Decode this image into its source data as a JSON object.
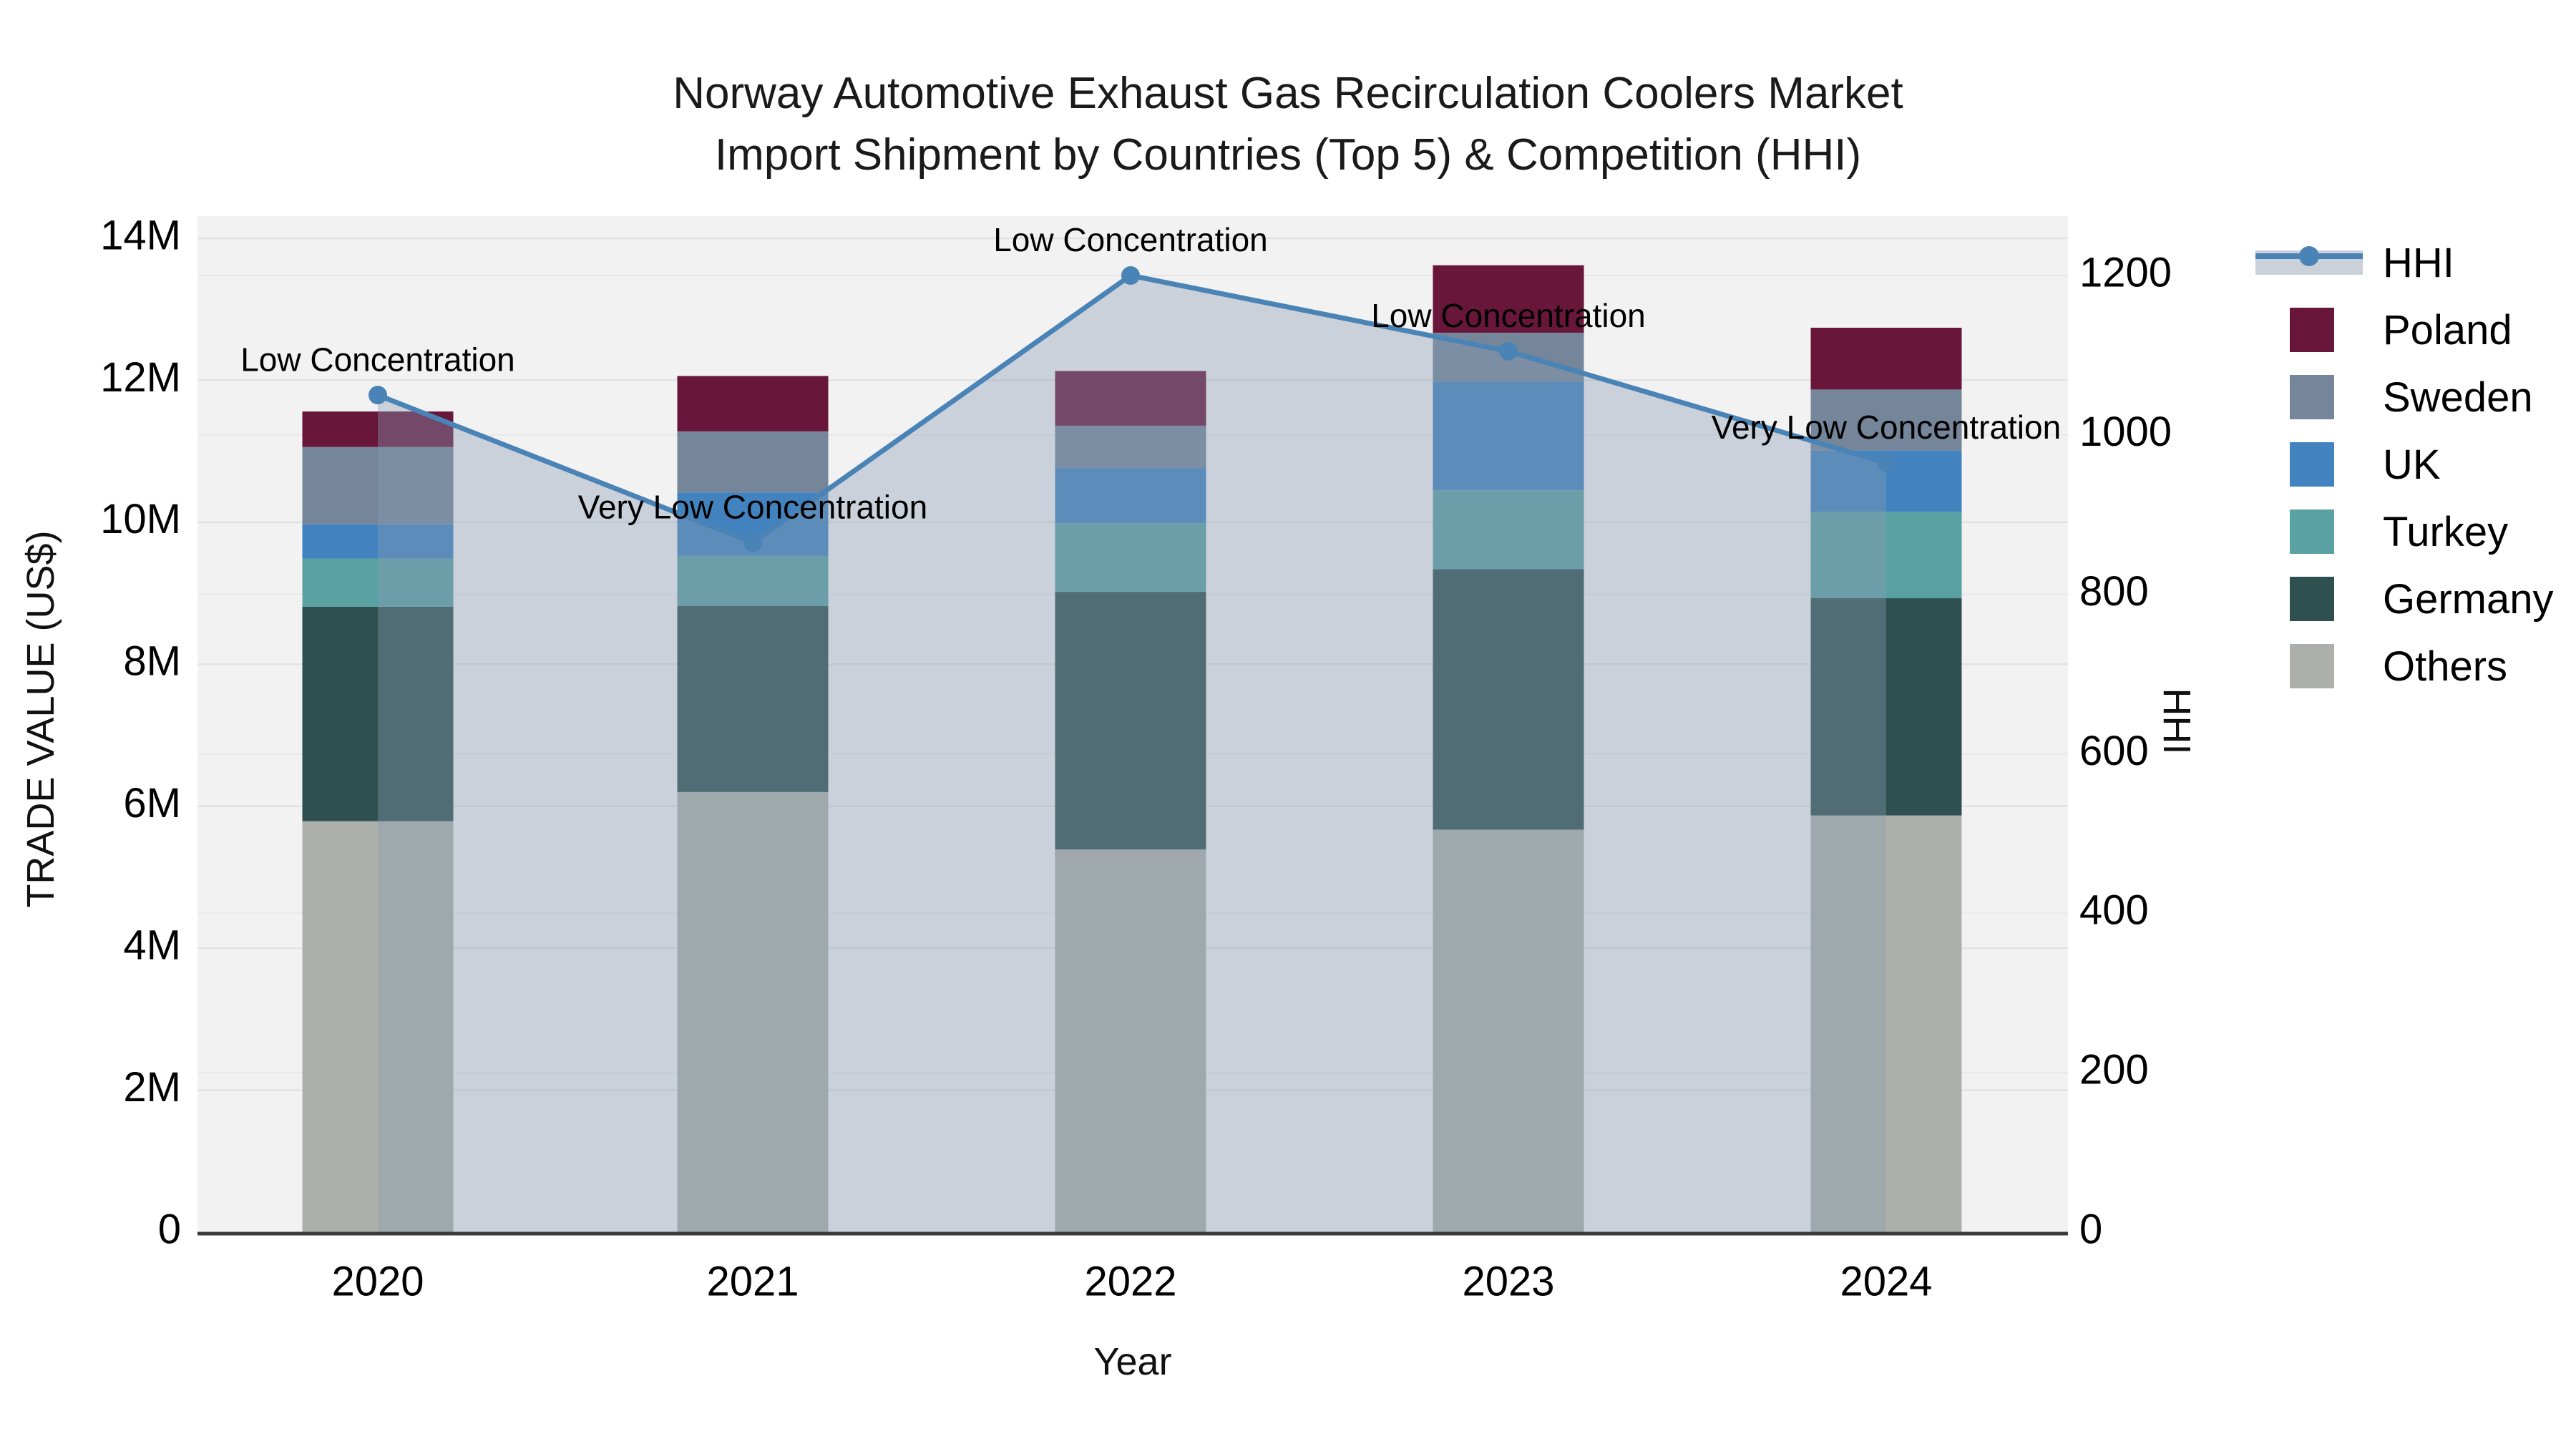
{
  "title": {
    "line1": "Norway Automotive Exhaust Gas Recirculation Coolers Market",
    "line2": "Import Shipment by Countries (Top 5) & Competition (HHI)"
  },
  "axes": {
    "x_title": "Year",
    "y_left_title": "TRADE VALUE (US$)",
    "y_right_title": "HHI",
    "y_left_ticks": [
      "0",
      "2M",
      "4M",
      "6M",
      "8M",
      "10M",
      "12M",
      "14M"
    ],
    "y_left_tick_values_musd": [
      0,
      2,
      4,
      6,
      8,
      10,
      12,
      14
    ],
    "y_right_ticks": [
      "0",
      "200",
      "400",
      "600",
      "800",
      "1000",
      "1200"
    ],
    "y_right_tick_values": [
      0,
      200,
      400,
      600,
      800,
      1000,
      1200
    ]
  },
  "chart_data": {
    "type": "bar",
    "stacked": true,
    "title": "Norway Automotive Exhaust Gas Recirculation Coolers Market Import Shipment by Countries (Top 5) & Competition (HHI)",
    "xlabel": "Year",
    "ylabel": "TRADE VALUE (US$)",
    "ylabel_right": "HHI",
    "categories": [
      "2020",
      "2021",
      "2022",
      "2023",
      "2024"
    ],
    "bar_unit": "million US$",
    "y_left_range_musd": [
      0,
      14
    ],
    "y_right_range": [
      0,
      1200
    ],
    "grid": true,
    "legend_position": "right",
    "bar_series_bottom_to_top": [
      {
        "name": "Others",
        "color": "#adb0aa",
        "values_musd": [
          5.79,
          6.2,
          5.39,
          5.67,
          5.87
        ]
      },
      {
        "name": "Germany",
        "color": "#2e5150",
        "values_musd": [
          3.02,
          2.62,
          3.63,
          3.67,
          3.06
        ]
      },
      {
        "name": "Turkey",
        "color": "#5aa1a4",
        "values_musd": [
          0.68,
          0.71,
          0.97,
          1.11,
          1.22
        ]
      },
      {
        "name": "UK",
        "color": "#4283bf",
        "values_musd": [
          0.48,
          0.89,
          0.77,
          1.53,
          0.86
        ]
      },
      {
        "name": "Sweden",
        "color": "#75869a",
        "values_musd": [
          1.09,
          0.86,
          0.6,
          0.69,
          0.86
        ]
      },
      {
        "name": "Poland",
        "color": "#68163a",
        "values_musd": [
          0.5,
          0.78,
          0.77,
          0.95,
          0.87
        ]
      }
    ],
    "bar_totals_musd": [
      11.56,
      12.06,
      12.13,
      13.62,
      12.74
    ],
    "line_series": {
      "name": "HHI",
      "color": "#4a83b5",
      "area_fill_color": "rgba(136,154,178,0.38)",
      "values": [
        1050,
        865,
        1200,
        1105,
        965
      ],
      "annotations": [
        "Low Concentration",
        "Very Low Concentration",
        "Low Concentration",
        "Low Concentration",
        "Very Low Concentration"
      ]
    }
  },
  "legend": {
    "items": [
      {
        "label": "HHI",
        "type": "line",
        "color": "#4a83b5"
      },
      {
        "label": "Poland",
        "type": "swatch",
        "color": "#68163a"
      },
      {
        "label": "Sweden",
        "type": "swatch",
        "color": "#75869a"
      },
      {
        "label": "UK",
        "type": "swatch",
        "color": "#4283bf"
      },
      {
        "label": "Turkey",
        "type": "swatch",
        "color": "#5aa1a4"
      },
      {
        "label": "Germany",
        "type": "swatch",
        "color": "#2e5150"
      },
      {
        "label": "Others",
        "type": "swatch",
        "color": "#adb0aa"
      }
    ]
  },
  "style_colors": {
    "plot_background": "#f2f2f2",
    "gridline_left": "#e2e2e2",
    "gridline_right": "#e8e8e8",
    "axis_line": "#3a3a3a",
    "text": "#000000"
  }
}
